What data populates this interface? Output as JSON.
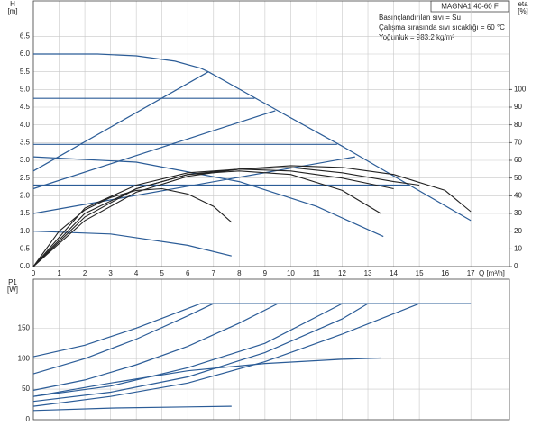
{
  "chart_data": [
    {
      "type": "line",
      "title": "MAGNA1 40-60 F",
      "annotations": [
        "Basınçlandırılan sıvı = Su",
        "Çalışma sırasında sıvı sıcaklığı = 60 °C",
        "Yoğunluk = 983.2 kg/m³"
      ],
      "ylabel": "H",
      "yunit": "[m]",
      "y2label": "eta",
      "y2unit": "[%]",
      "xlabel": "Q [m³/h]",
      "xlim": [
        0,
        18.5
      ],
      "xticks": [
        0,
        1,
        2,
        3,
        4,
        5,
        6,
        7,
        8,
        9,
        10,
        11,
        12,
        13,
        14,
        15,
        16,
        17
      ],
      "ylim": [
        0,
        7.5
      ],
      "yticks": [
        {
          "value": 0,
          "label": "0.0"
        },
        0.5,
        {
          "value": 1,
          "label": "1.0"
        },
        1.5,
        {
          "value": 2,
          "label": "2.0"
        },
        2.5,
        {
          "value": 3,
          "label": "3.0"
        },
        3.5,
        {
          "value": 4,
          "label": "4.0"
        },
        4.5,
        {
          "value": 5,
          "label": "5.0"
        },
        5.5,
        {
          "value": 6,
          "label": "6.0"
        },
        6.5
      ],
      "y2lim": [
        0,
        150
      ],
      "y2ticks": [
        0,
        10,
        20,
        30,
        40,
        50,
        60,
        70,
        80,
        90,
        100
      ],
      "grid": true,
      "series": [
        {
          "color": "#2b5c97",
          "x": [
            0,
            2.5,
            4,
            5.5,
            6.5,
            6.8,
            9.5,
            12,
            14.5,
            17
          ],
          "values": [
            6.0,
            6.0,
            5.95,
            5.8,
            5.6,
            5.5,
            4.4,
            3.4,
            2.35,
            1.3
          ]
        },
        {
          "color": "#2b5c97",
          "x": [
            0,
            6.8
          ],
          "values": [
            2.7,
            5.5
          ]
        },
        {
          "color": "#2b5c97",
          "x": [
            0,
            9.4
          ],
          "values": [
            2.2,
            4.4
          ]
        },
        {
          "color": "#2b5c97",
          "x": [
            0,
            12.5
          ],
          "values": [
            1.5,
            3.1
          ]
        },
        {
          "color": "#2b5c97",
          "x": [
            0,
            8.6
          ],
          "values": [
            4.75,
            4.75
          ]
        },
        {
          "color": "#2b5c97",
          "x": [
            0,
            11.8
          ],
          "values": [
            3.45,
            3.45
          ]
        },
        {
          "color": "#2b5c97",
          "x": [
            0,
            14.6
          ],
          "values": [
            2.3,
            2.3
          ]
        },
        {
          "color": "#2b5c97",
          "x": [
            0,
            4,
            8,
            11,
            13.6
          ],
          "values": [
            3.1,
            2.95,
            2.4,
            1.7,
            0.85
          ]
        },
        {
          "color": "#2b5c97",
          "x": [
            0,
            3,
            6,
            7.7
          ],
          "values": [
            1.0,
            0.92,
            0.6,
            0.3
          ]
        },
        {
          "color": "#222222",
          "axis": "y2",
          "x": [
            0,
            1,
            2,
            3,
            4,
            5,
            6,
            7,
            7.7
          ],
          "values": [
            0,
            20,
            32,
            39,
            43,
            44,
            41,
            34,
            25
          ]
        },
        {
          "color": "#222222",
          "axis": "y2",
          "x": [
            0,
            2,
            4,
            6,
            8,
            10,
            12,
            13.5
          ],
          "values": [
            0,
            30,
            44,
            52,
            54,
            52,
            43,
            30
          ]
        },
        {
          "color": "#222222",
          "axis": "y2",
          "x": [
            0,
            2,
            4,
            6,
            8,
            10,
            12,
            14,
            15
          ],
          "values": [
            0,
            28,
            44,
            52,
            55,
            56,
            53,
            48,
            46
          ]
        },
        {
          "color": "#222222",
          "axis": "y2",
          "x": [
            0,
            2,
            4,
            6,
            8,
            10,
            12,
            14,
            16,
            17
          ],
          "values": [
            0,
            26,
            42,
            51,
            55,
            57,
            56,
            52,
            43,
            31
          ]
        },
        {
          "color": "#222222",
          "axis": "y2",
          "x": [
            0,
            2,
            4,
            6,
            8,
            10,
            12,
            14
          ],
          "values": [
            0,
            33,
            46,
            53,
            55,
            54,
            50,
            44
          ]
        }
      ]
    },
    {
      "type": "line",
      "ylabel": "P1",
      "yunit": "[W]",
      "xlim": [
        0,
        18.5
      ],
      "ylim": [
        0,
        230
      ],
      "yticks": [
        0,
        50,
        100,
        150
      ],
      "grid": true,
      "series": [
        {
          "color": "#2b5c97",
          "x": [
            6.5,
            17
          ],
          "values": [
            190,
            190
          ]
        },
        {
          "color": "#2b5c97",
          "x": [
            0,
            2,
            4,
            6.5
          ],
          "values": [
            103,
            122,
            150,
            190
          ]
        },
        {
          "color": "#2b5c97",
          "x": [
            0,
            2,
            4,
            6,
            7
          ],
          "values": [
            75,
            100,
            132,
            170,
            190
          ]
        },
        {
          "color": "#2b5c97",
          "x": [
            0,
            2,
            4,
            6,
            8,
            9.5
          ],
          "values": [
            48,
            65,
            90,
            120,
            158,
            190
          ]
        },
        {
          "color": "#2b5c97",
          "x": [
            0,
            3,
            6,
            9,
            12
          ],
          "values": [
            38,
            55,
            85,
            125,
            190
          ]
        },
        {
          "color": "#2b5c97",
          "x": [
            0,
            3,
            6,
            9,
            12,
            13
          ],
          "values": [
            30,
            45,
            70,
            110,
            165,
            190
          ]
        },
        {
          "color": "#2b5c97",
          "x": [
            0,
            3,
            6,
            9,
            12,
            15
          ],
          "values": [
            22,
            38,
            60,
            95,
            140,
            190
          ]
        },
        {
          "color": "#2b5c97",
          "x": [
            0,
            3,
            6,
            9,
            12,
            13.5
          ],
          "values": [
            38,
            60,
            80,
            92,
            99,
            101
          ]
        },
        {
          "color": "#2b5c97",
          "x": [
            0,
            3,
            6,
            7.7
          ],
          "values": [
            15,
            19,
            21,
            22
          ]
        }
      ]
    }
  ]
}
